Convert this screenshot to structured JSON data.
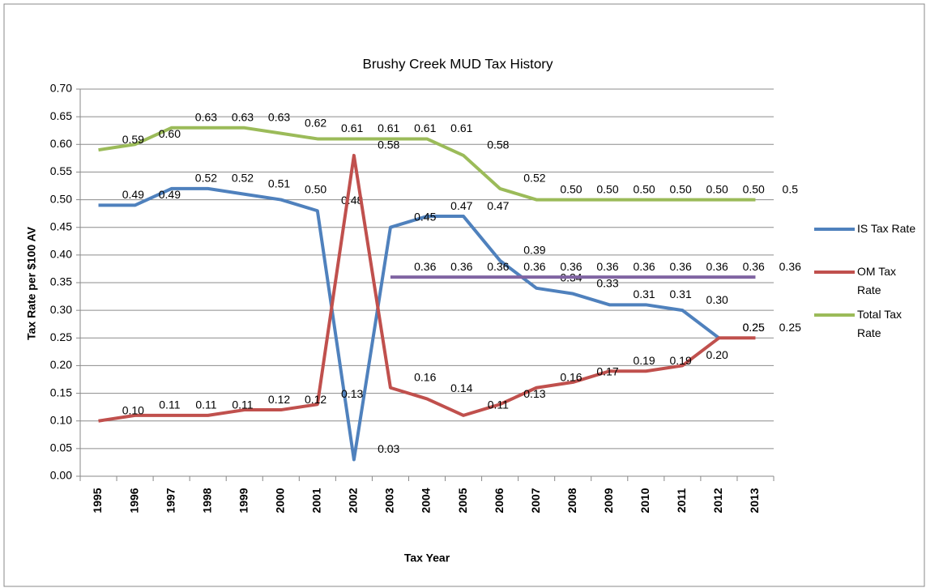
{
  "chart_data": {
    "type": "line",
    "title": "Brushy Creek MUD Tax History",
    "x_label": "Tax Year",
    "y_label": "Tax Rate per $100 AV",
    "categories": [
      "1995",
      "1996",
      "1997",
      "1998",
      "1999",
      "2000",
      "2001",
      "2002",
      "2003",
      "2004",
      "2005",
      "2006",
      "2007",
      "2008",
      "2009",
      "2010",
      "2011",
      "2012",
      "2013"
    ],
    "ylim": [
      0,
      0.7
    ],
    "yticks": [
      {
        "value": 0,
        "label": "0.00"
      },
      {
        "value": 0.05,
        "label": "0.05"
      },
      {
        "value": 0.1,
        "label": "0.10"
      },
      {
        "value": 0.15,
        "label": "0.15"
      },
      {
        "value": 0.2,
        "label": "0.20"
      },
      {
        "value": 0.25,
        "label": "0.25"
      },
      {
        "value": 0.3,
        "label": "0.30"
      },
      {
        "value": 0.35,
        "label": "0.35"
      },
      {
        "value": 0.4,
        "label": "0.40"
      },
      {
        "value": 0.45,
        "label": "0.45"
      },
      {
        "value": 0.5,
        "label": "0.50"
      },
      {
        "value": 0.55,
        "label": "0.55"
      },
      {
        "value": 0.6,
        "label": "0.60"
      },
      {
        "value": 0.65,
        "label": "0.65"
      },
      {
        "value": 0.7,
        "label": "0.70"
      }
    ],
    "grid": true,
    "legend": "right",
    "series": [
      {
        "name": "IS Tax Rate",
        "color": "#4f81bd",
        "values": [
          0.49,
          0.49,
          0.52,
          0.52,
          0.51,
          0.5,
          0.48,
          0.03,
          0.45,
          0.47,
          0.47,
          0.39,
          0.34,
          0.33,
          0.31,
          0.31,
          0.3,
          0.25,
          null
        ],
        "value_labels": [
          "0.49",
          "0.49",
          "0.52",
          "0.52",
          "0.51",
          "0.50",
          "0.48",
          "0.03",
          "0.45",
          "0.47",
          "0.47",
          "0.39",
          "0.34",
          "0.33",
          "0.31",
          "0.31",
          "0.30",
          "0.25",
          null
        ]
      },
      {
        "name": "OM Tax Rate",
        "color": "#c0504d",
        "values": [
          0.1,
          0.11,
          0.11,
          0.11,
          0.12,
          0.12,
          0.13,
          0.58,
          0.16,
          0.14,
          0.11,
          0.13,
          0.16,
          0.17,
          0.19,
          0.19,
          0.2,
          0.25,
          0.25
        ],
        "value_labels": [
          "0.10",
          "0.11",
          "0.11",
          "0.11",
          "0.12",
          "0.12",
          "0.13",
          "0.58",
          "0.16",
          "0.14",
          "0.11",
          "0.13",
          "0.16",
          "0.17",
          "0.19",
          "0.19",
          "0.20",
          "0.25",
          "0.25"
        ]
      },
      {
        "name": "Total Tax Rate",
        "color": "#9bbb59",
        "values": [
          0.59,
          0.6,
          0.63,
          0.63,
          0.63,
          0.62,
          0.61,
          0.61,
          0.61,
          0.61,
          0.58,
          0.52,
          0.5,
          0.5,
          0.5,
          0.5,
          0.5,
          0.5,
          0.5
        ],
        "value_labels": [
          "0.59",
          "0.60",
          "0.63",
          "0.63",
          "0.63",
          "0.62",
          "0.61",
          "0.61",
          "0.61",
          "0.61",
          "0.58",
          "0.52",
          "0.50",
          "0.50",
          "0.50",
          "0.50",
          "0.50",
          "0.50",
          "0.5"
        ]
      },
      {
        "color": "#8064a2",
        "values": [
          null,
          null,
          null,
          null,
          null,
          null,
          null,
          null,
          0.36,
          0.36,
          0.36,
          0.36,
          0.36,
          0.36,
          0.36,
          0.36,
          0.36,
          0.36,
          0.36
        ],
        "value_labels": [
          null,
          null,
          null,
          null,
          null,
          null,
          null,
          null,
          "0.36",
          "0.36",
          "0.36",
          "0.36",
          "0.36",
          "0.36",
          "0.36",
          "0.36",
          "0.36",
          "0.36",
          "0.36"
        ]
      }
    ]
  }
}
